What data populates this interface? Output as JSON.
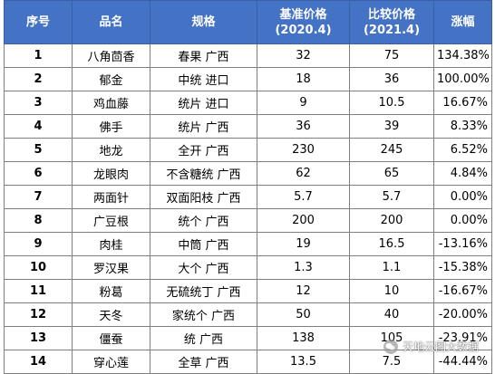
{
  "table": {
    "headers": {
      "no": "序号",
      "name": "品名",
      "spec": "规格",
      "base_line1": "基准价格",
      "base_line2": "(2020.4)",
      "cmp_line1": "比较价格",
      "cmp_line2": "(2021.4)",
      "change": "涨幅"
    },
    "rows": [
      {
        "no": "1",
        "name": "八角茴香",
        "spec": "春果 广西",
        "base": "32",
        "cmp": "75",
        "change": "134.38%"
      },
      {
        "no": "2",
        "name": "郁金",
        "spec": "中统 进口",
        "base": "18",
        "cmp": "36",
        "change": "100.00%"
      },
      {
        "no": "3",
        "name": "鸡血藤",
        "spec": "统片 进口",
        "base": "9",
        "cmp": "10.5",
        "change": "16.67%"
      },
      {
        "no": "4",
        "name": "佛手",
        "spec": "统片 广西",
        "base": "36",
        "cmp": "39",
        "change": "8.33%"
      },
      {
        "no": "5",
        "name": "地龙",
        "spec": "全开 广西",
        "base": "230",
        "cmp": "245",
        "change": "6.52%"
      },
      {
        "no": "6",
        "name": "龙眼肉",
        "spec": "不含糖统 广西",
        "base": "62",
        "cmp": "65",
        "change": "4.84%"
      },
      {
        "no": "7",
        "name": "两面针",
        "spec": "双面阳枝 广西",
        "base": "5.7",
        "cmp": "5.7",
        "change": "0.00%"
      },
      {
        "no": "8",
        "name": "广豆根",
        "spec": "统个 广西",
        "base": "200",
        "cmp": "200",
        "change": "0.00%"
      },
      {
        "no": "9",
        "name": "肉桂",
        "spec": "中筒 广西",
        "base": "19",
        "cmp": "16.5",
        "change": "-13.16%"
      },
      {
        "no": "10",
        "name": "罗汉果",
        "spec": "大个 广西",
        "base": "1.3",
        "cmp": "1.1",
        "change": "-15.38%"
      },
      {
        "no": "11",
        "name": "粉葛",
        "spec": "无硫统丁 广西",
        "base": "12",
        "cmp": "10",
        "change": "-16.67%"
      },
      {
        "no": "12",
        "name": "天冬",
        "spec": "家统个 广西",
        "base": "50",
        "cmp": "40",
        "change": "-20.00%"
      },
      {
        "no": "13",
        "name": "僵蚕",
        "spec": "统 广西",
        "base": "138",
        "cmp": "105",
        "change": "-23.91%"
      },
      {
        "no": "14",
        "name": "穿心莲",
        "spec": "全草 广西",
        "base": "13.5",
        "cmp": "7.5",
        "change": "-44.44%"
      }
    ]
  },
  "watermark": {
    "text": "天地云图大数据",
    "icon": "chat-bubble-icon"
  },
  "colors": {
    "header_bg": "#4472c4",
    "header_text": "#ffffff",
    "grid": "#7f7f7f"
  }
}
